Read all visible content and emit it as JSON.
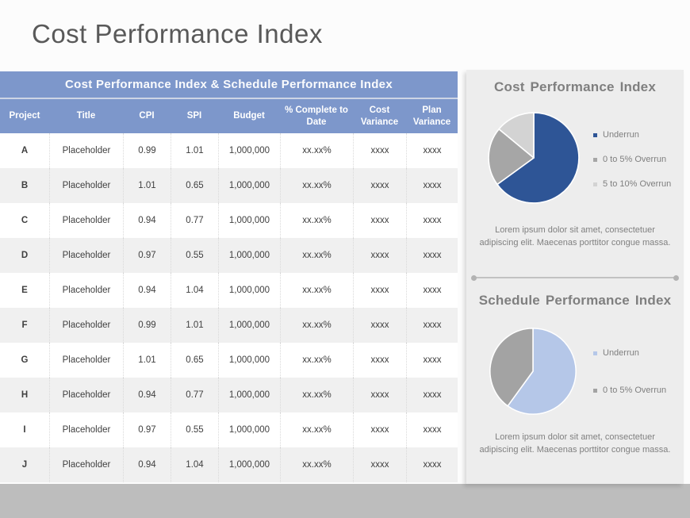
{
  "page": {
    "title": "Cost Performance Index"
  },
  "colors": {
    "table_header_blue": "#7D97CB",
    "row_alt_gray": "#F0F0F0",
    "bottom_band_gray": "#BDBDBD",
    "panel_gray": "#EDEDED",
    "text_gray": "#7F7F7F"
  },
  "table": {
    "title": "Cost Performance Index & Schedule Performance Index",
    "columns": [
      "Project",
      "Title",
      "CPI",
      "SPI",
      "Budget",
      "% Complete to Date",
      "Cost Variance",
      "Plan Variance"
    ],
    "rows": [
      [
        "A",
        "Placeholder",
        "0.99",
        "1.01",
        "1,000,000",
        "xx.xx%",
        "xxxx",
        "xxxx"
      ],
      [
        "B",
        "Placeholder",
        "1.01",
        "0.65",
        "1,000,000",
        "xx.xx%",
        "xxxx",
        "xxxx"
      ],
      [
        "C",
        "Placeholder",
        "0.94",
        "0.77",
        "1,000,000",
        "xx.xx%",
        "xxxx",
        "xxxx"
      ],
      [
        "D",
        "Placeholder",
        "0.97",
        "0.55",
        "1,000,000",
        "xx.xx%",
        "xxxx",
        "xxxx"
      ],
      [
        "E",
        "Placeholder",
        "0.94",
        "1.04",
        "1,000,000",
        "xx.xx%",
        "xxxx",
        "xxxx"
      ],
      [
        "F",
        "Placeholder",
        "0.99",
        "1.01",
        "1,000,000",
        "xx.xx%",
        "xxxx",
        "xxxx"
      ],
      [
        "G",
        "Placeholder",
        "1.01",
        "0.65",
        "1,000,000",
        "xx.xx%",
        "xxxx",
        "xxxx"
      ],
      [
        "H",
        "Placeholder",
        "0.94",
        "0.77",
        "1,000,000",
        "xx.xx%",
        "xxxx",
        "xxxx"
      ],
      [
        "I",
        "Placeholder",
        "0.97",
        "0.55",
        "1,000,000",
        "xx.xx%",
        "xxxx",
        "xxxx"
      ],
      [
        "J",
        "Placeholder",
        "0.94",
        "1.04",
        "1,000,000",
        "xx.xx%",
        "xxxx",
        "xxxx"
      ]
    ]
  },
  "chart_data": [
    {
      "type": "pie",
      "title": "Cost Performance Index",
      "labels": [
        "Underrun",
        "0 to 5% Overrun",
        "5 to 10% Overrun"
      ],
      "values": [
        65,
        21,
        14
      ],
      "colors": [
        "#2E5596",
        "#A6A6A6",
        "#D3D3D3"
      ],
      "legend_position": "right",
      "description": "Lorem ipsum dolor sit amet, consectetuer adipiscing elit. Maecenas porttitor congue massa."
    },
    {
      "type": "pie",
      "title": "Schedule Performance Index",
      "labels": [
        "Underrun",
        "0 to 5% Overrun"
      ],
      "values": [
        60,
        40
      ],
      "colors": [
        "#B5C7E8",
        "#A3A3A3"
      ],
      "legend_position": "right",
      "description": "Lorem ipsum dolor sit amet, consectetuer adipiscing elit. Maecenas porttitor congue massa."
    }
  ]
}
